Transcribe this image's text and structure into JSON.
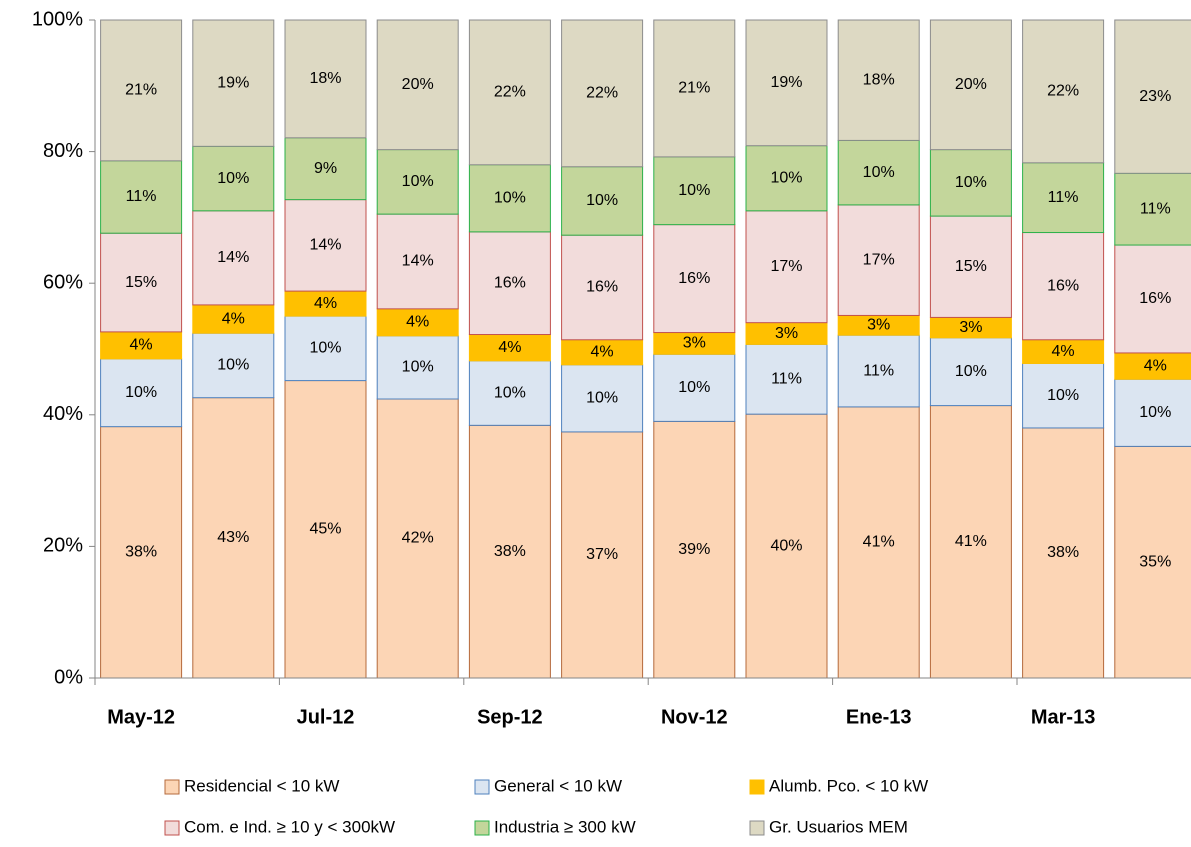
{
  "chart_data": {
    "type": "stacked_bar",
    "categories": [
      "May-12",
      null,
      "Jul-12",
      null,
      "Sep-12",
      null,
      "Nov-12",
      null,
      "Ene-13",
      null,
      "Mar-13",
      null
    ],
    "ylim": [
      0,
      100
    ],
    "yticks": [
      {
        "value": 0,
        "label": "0%"
      },
      {
        "value": 20,
        "label": "20%"
      },
      {
        "value": 40,
        "label": "40%"
      },
      {
        "value": 60,
        "label": "60%"
      },
      {
        "value": 80,
        "label": "80%"
      },
      {
        "value": 100,
        "label": "100%"
      }
    ],
    "legend": "bottom",
    "series": [
      {
        "name": "Residencial < 10 kW",
        "color": "#fcd5b5",
        "values": [
          38.2,
          42.6,
          45.2,
          42.4,
          38.4,
          37.4,
          39.0,
          40.1,
          41.2,
          41.4,
          38.0,
          35.2
        ],
        "value_labels": [
          "38%",
          "43%",
          "45%",
          "42%",
          "38%",
          "37%",
          "39%",
          "40%",
          "41%",
          "41%",
          "38%",
          "35%"
        ]
      },
      {
        "name": "General < 10 kW",
        "color": "#dbe5f1",
        "values": [
          10.3,
          9.8,
          9.8,
          9.6,
          9.8,
          10.2,
          10.2,
          10.6,
          10.9,
          10.3,
          9.8,
          10.2
        ],
        "value_labels": [
          "10%",
          "10%",
          "10%",
          "10%",
          "10%",
          "10%",
          "10%",
          "11%",
          "11%",
          "10%",
          "10%",
          "10%"
        ]
      },
      {
        "name": "Alumb. Pco. < 10 kW",
        "color": "#ffc000",
        "values": [
          4.1,
          4.3,
          3.8,
          4.1,
          4.0,
          3.8,
          3.3,
          3.3,
          3.0,
          3.1,
          3.6,
          4.0
        ],
        "value_labels": [
          "4%",
          "4%",
          "4%",
          "4%",
          "4%",
          "4%",
          "3%",
          "3%",
          "3%",
          "3%",
          "4%",
          "4%"
        ]
      },
      {
        "name": "Com. e Ind. ≥ 10 y < 300kW",
        "color": "#f2dcdb",
        "values": [
          15.0,
          14.3,
          13.9,
          14.4,
          15.6,
          15.9,
          16.4,
          17.0,
          16.8,
          15.4,
          16.3,
          16.4
        ],
        "value_labels": [
          "15%",
          "14%",
          "14%",
          "14%",
          "16%",
          "16%",
          "16%",
          "17%",
          "17%",
          "15%",
          "16%",
          "16%"
        ]
      },
      {
        "name": "Industria ≥ 300 kW",
        "color": "#c3d69b",
        "values": [
          11.0,
          9.8,
          9.4,
          9.8,
          10.2,
          10.4,
          10.3,
          9.9,
          9.8,
          10.1,
          10.6,
          10.9
        ],
        "value_labels": [
          "11%",
          "10%",
          "9%",
          "10%",
          "10%",
          "10%",
          "10%",
          "10%",
          "10%",
          "10%",
          "11%",
          "11%"
        ]
      },
      {
        "name": "Gr. Usuarios MEM",
        "color": "#ddd9c3",
        "values": [
          21.4,
          19.2,
          17.9,
          19.7,
          22.0,
          22.3,
          20.8,
          19.1,
          18.3,
          19.7,
          21.7,
          23.3
        ],
        "value_labels": [
          "21%",
          "19%",
          "18%",
          "20%",
          "22%",
          "22%",
          "21%",
          "19%",
          "18%",
          "20%",
          "22%",
          "23%"
        ]
      }
    ]
  }
}
